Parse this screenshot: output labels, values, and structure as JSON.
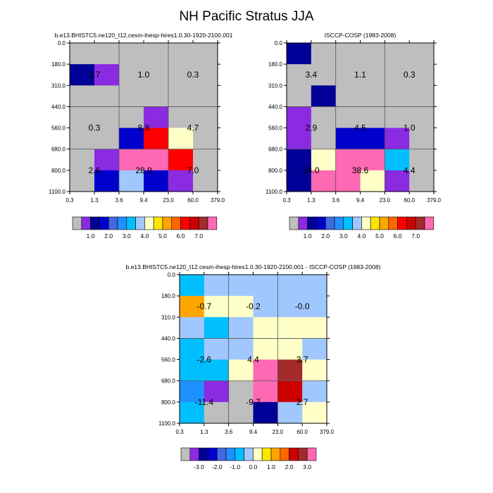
{
  "chart_data": {
    "type": "heatmap",
    "title": "NH Pacific Stratus JJA",
    "x_ticks": [
      "0.3",
      "1.3",
      "3.6",
      "9.4",
      "23.0",
      "60.0",
      "379.0"
    ],
    "y_ticks": [
      "0.0",
      "180.0",
      "310.0",
      "440.0",
      "560.0",
      "680.0",
      "800.0",
      "1100.0"
    ],
    "panels": [
      {
        "id": "model",
        "subtitle": "b.e13.BHISTC5.ne120_t12.cesm-ihesp-hires1.0.30-1920-2100.001",
        "cell_colors": [
          [
            "#BEBEBE",
            "#BEBEBE",
            "#BEBEBE",
            "#BEBEBE",
            "#BEBEBE",
            "#BEBEBE"
          ],
          [
            "#000096",
            "#8A2BE2",
            "#BEBEBE",
            "#BEBEBE",
            "#BEBEBE",
            "#BEBEBE"
          ],
          [
            "#BEBEBE",
            "#BEBEBE",
            "#BEBEBE",
            "#BEBEBE",
            "#BEBEBE",
            "#BEBEBE"
          ],
          [
            "#BEBEBE",
            "#BEBEBE",
            "#BEBEBE",
            "#8A2BE2",
            "#BEBEBE",
            "#BEBEBE"
          ],
          [
            "#BEBEBE",
            "#BEBEBE",
            "#0000CD",
            "#FF0000",
            "#FFFFC8",
            "#BEBEBE"
          ],
          [
            "#BEBEBE",
            "#8A2BE2",
            "#FF69B4",
            "#FF69B4",
            "#FF0000",
            "#BEBEBE"
          ],
          [
            "#BEBEBE",
            "#0000CD",
            "#A0C8FF",
            "#0000CD",
            "#8A2BE2",
            "#BEBEBE"
          ]
        ],
        "labels": [
          {
            "row": 0,
            "col": 0,
            "text": "3.7"
          },
          {
            "row": 0,
            "col": 1,
            "text": "1.0"
          },
          {
            "row": 0,
            "col": 2,
            "text": "0.3"
          },
          {
            "row": 1,
            "col": 0,
            "text": "0.3"
          },
          {
            "row": 1,
            "col": 1,
            "text": "8.8"
          },
          {
            "row": 1,
            "col": 2,
            "text": "4.7"
          },
          {
            "row": 2,
            "col": 0,
            "text": "2.6"
          },
          {
            "row": 2,
            "col": 1,
            "text": "28.9"
          },
          {
            "row": 2,
            "col": 2,
            "text": "7.0"
          }
        ]
      },
      {
        "id": "obs",
        "subtitle": "ISCCP-COSP (1983-2008)",
        "cell_colors": [
          [
            "#000096",
            "#BEBEBE",
            "#BEBEBE",
            "#BEBEBE",
            "#BEBEBE",
            "#BEBEBE"
          ],
          [
            "#BEBEBE",
            "#BEBEBE",
            "#BEBEBE",
            "#BEBEBE",
            "#BEBEBE",
            "#BEBEBE"
          ],
          [
            "#BEBEBE",
            "#000096",
            "#BEBEBE",
            "#BEBEBE",
            "#BEBEBE",
            "#BEBEBE"
          ],
          [
            "#8A2BE2",
            "#BEBEBE",
            "#BEBEBE",
            "#BEBEBE",
            "#BEBEBE",
            "#BEBEBE"
          ],
          [
            "#8A2BE2",
            "#BEBEBE",
            "#0000CD",
            "#0000CD",
            "#8A2BE2",
            "#BEBEBE"
          ],
          [
            "#000096",
            "#FFFFC8",
            "#FF69B4",
            "#FF69B4",
            "#00BFFF",
            "#BEBEBE"
          ],
          [
            "#000096",
            "#FF69B4",
            "#FF69B4",
            "#FFFFC8",
            "#8A2BE2",
            "#BEBEBE"
          ]
        ],
        "labels": [
          {
            "row": 0,
            "col": 0,
            "text": "3.4"
          },
          {
            "row": 0,
            "col": 1,
            "text": "1.1"
          },
          {
            "row": 0,
            "col": 2,
            "text": "0.3"
          },
          {
            "row": 1,
            "col": 0,
            "text": "2.9"
          },
          {
            "row": 1,
            "col": 1,
            "text": "4.5"
          },
          {
            "row": 1,
            "col": 2,
            "text": "1.0"
          },
          {
            "row": 2,
            "col": 0,
            "text": "14.0"
          },
          {
            "row": 2,
            "col": 1,
            "text": "38.6"
          },
          {
            "row": 2,
            "col": 2,
            "text": "4.4"
          }
        ]
      },
      {
        "id": "diff",
        "subtitle": "b.e13.BHISTC5.ne120_t12.cesm-ihesp-hires1.0.30-1920-2100.001 - ISCCP-COSP (1983-2008)",
        "cell_colors": [
          [
            "#00BFFF",
            "#A0C8FF",
            "#A0C8FF",
            "#A0C8FF",
            "#A0C8FF",
            "#A0C8FF"
          ],
          [
            "#FFA500",
            "#FFFFC8",
            "#FFFFC8",
            "#A0C8FF",
            "#A0C8FF",
            "#A0C8FF"
          ],
          [
            "#A0C8FF",
            "#00BFFF",
            "#A0C8FF",
            "#FFFFC8",
            "#FFFFC8",
            "#FFFFC8"
          ],
          [
            "#00BFFF",
            "#A0C8FF",
            "#A0C8FF",
            "#FFFFC8",
            "#FFFFC8",
            "#A0C8FF"
          ],
          [
            "#00BFFF",
            "#00BFFF",
            "#FFFFC8",
            "#FF69B4",
            "#A52A2A",
            "#FFFFC8"
          ],
          [
            "#1E90FF",
            "#8A2BE2",
            "#BEBEBE",
            "#FF69B4",
            "#CD0000",
            "#A0C8FF"
          ],
          [
            "#00BFFF",
            "#BEBEBE",
            "#BEBEBE",
            "#000096",
            "#A0C8FF",
            "#FFFFC8"
          ]
        ],
        "labels": [
          {
            "row": 0,
            "col": 0,
            "text": "-0.7"
          },
          {
            "row": 0,
            "col": 1,
            "text": "-0.2"
          },
          {
            "row": 0,
            "col": 2,
            "text": "-0.0"
          },
          {
            "row": 1,
            "col": 0,
            "text": "-2.6"
          },
          {
            "row": 1,
            "col": 1,
            "text": "4.4"
          },
          {
            "row": 1,
            "col": 2,
            "text": "3.7"
          },
          {
            "row": 2,
            "col": 0,
            "text": "-11.4"
          },
          {
            "row": 2,
            "col": 1,
            "text": "-9.7"
          },
          {
            "row": 2,
            "col": 2,
            "text": "2.7"
          }
        ]
      }
    ],
    "colorbars": [
      {
        "id": "abs",
        "colors": [
          "#BEBEBE",
          "#8A2BE2",
          "#000096",
          "#0000CD",
          "#4169E1",
          "#1E90FF",
          "#00BFFF",
          "#A0C8FF",
          "#FFFFC8",
          "#FFE600",
          "#FFA500",
          "#FF6600",
          "#FF0000",
          "#CD0000",
          "#A52A2A",
          "#FF69B4"
        ],
        "labels": [
          {
            "after_box": 2,
            "text": "1.0"
          },
          {
            "after_box": 4,
            "text": "2.0"
          },
          {
            "after_box": 6,
            "text": "3.0"
          },
          {
            "after_box": 8,
            "text": "4.0"
          },
          {
            "after_box": 10,
            "text": "5.0"
          },
          {
            "after_box": 12,
            "text": "6.0"
          },
          {
            "after_box": 14,
            "text": "7.0"
          }
        ]
      },
      {
        "id": "diffbar",
        "colors": [
          "#BEBEBE",
          "#8A2BE2",
          "#000096",
          "#0000CD",
          "#4169E1",
          "#1E90FF",
          "#00BFFF",
          "#A0C8FF",
          "#FFFFC8",
          "#FFE600",
          "#FFA500",
          "#FF6600",
          "#CD0000",
          "#A52A2A",
          "#FF69B4"
        ],
        "labels": [
          {
            "after_box": 2,
            "text": "-3.0"
          },
          {
            "after_box": 4,
            "text": "-2.0"
          },
          {
            "after_box": 6,
            "text": "-1.0"
          },
          {
            "after_box": 8,
            "text": "0.0"
          },
          {
            "after_box": 10,
            "text": "1.0"
          },
          {
            "after_box": 12,
            "text": "2.0"
          },
          {
            "after_box": 14,
            "text": "3.0"
          }
        ]
      }
    ]
  }
}
